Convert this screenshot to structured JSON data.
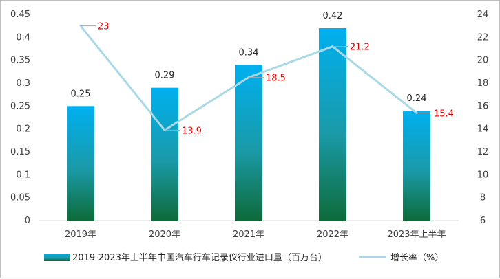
{
  "chart_data": {
    "type": "bar",
    "categories": [
      "2019年",
      "2020年",
      "2021年",
      "2022年",
      "2023年上半年"
    ],
    "series": [
      {
        "name": "2019-2023年上半年中国汽车行车记录仪行业进口量（百万台）",
        "type": "bar",
        "axis": "left",
        "values": [
          0.25,
          0.29,
          0.34,
          0.42,
          0.24
        ],
        "labels": [
          "0.25",
          "0.29",
          "0.34",
          "0.42",
          "0.24"
        ]
      },
      {
        "name": "增长率（%）",
        "type": "line",
        "axis": "right",
        "values": [
          23,
          13.9,
          18.5,
          21.2,
          15.4
        ],
        "labels": [
          "23",
          "13.9",
          "18.5",
          "21.2",
          "15.4"
        ]
      }
    ],
    "y_left": {
      "ylim": [
        0,
        0.45
      ],
      "ticks": [
        "0",
        "0.05",
        "0.1",
        "0.15",
        "0.2",
        "0.25",
        "0.3",
        "0.35",
        "0.4",
        "0.45"
      ]
    },
    "y_right": {
      "ylim": [
        6,
        24
      ],
      "ticks": [
        "6",
        "8",
        "10",
        "12",
        "14",
        "16",
        "18",
        "20",
        "22",
        "24"
      ]
    },
    "grid": false,
    "legend_position": "bottom",
    "colors": {
      "bar_top": "#00b0f0",
      "bar_bottom": "#0e6b3a",
      "line": "#a9d8e6",
      "rate_label": "#e00000",
      "axis_text": "#404040"
    }
  }
}
